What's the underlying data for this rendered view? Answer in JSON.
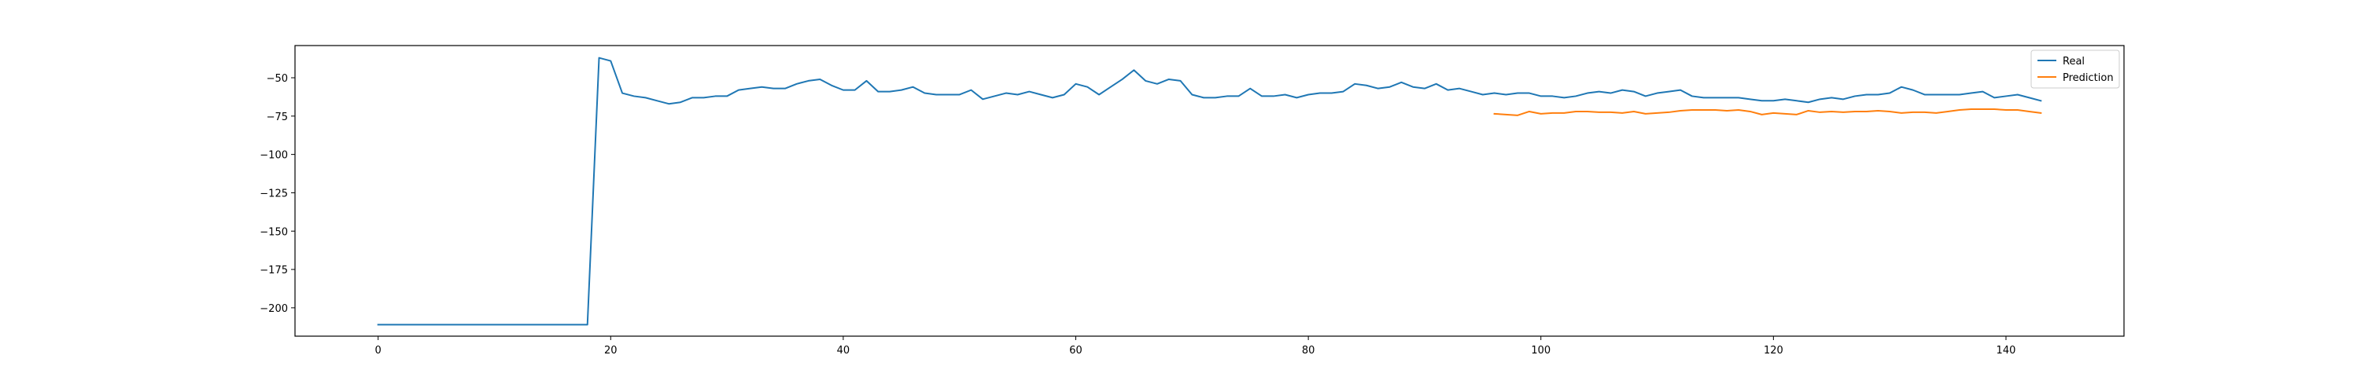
{
  "chart_data": {
    "type": "line",
    "title": "",
    "xlabel": "",
    "ylabel": "",
    "xlim": [
      -7.15,
      150.15
    ],
    "ylim": [
      -218.5,
      -29.0
    ],
    "xticks": [
      0,
      20,
      40,
      60,
      80,
      100,
      120,
      140
    ],
    "yticks": [
      -200,
      -175,
      -150,
      -125,
      -100,
      -75,
      -50
    ],
    "grid": false,
    "legend_position": "top-right",
    "series": [
      {
        "name": "Real",
        "color": "#1f77b4",
        "x": [
          0,
          1,
          2,
          3,
          4,
          5,
          6,
          7,
          8,
          9,
          10,
          11,
          12,
          13,
          14,
          15,
          16,
          17,
          18,
          19,
          20,
          21,
          22,
          23,
          24,
          25,
          26,
          27,
          28,
          29,
          30,
          31,
          32,
          33,
          34,
          35,
          36,
          37,
          38,
          39,
          40,
          41,
          42,
          43,
          44,
          45,
          46,
          47,
          48,
          49,
          50,
          51,
          52,
          53,
          54,
          55,
          56,
          57,
          58,
          59,
          60,
          61,
          62,
          63,
          64,
          65,
          66,
          67,
          68,
          69,
          70,
          71,
          72,
          73,
          74,
          75,
          76,
          77,
          78,
          79,
          80,
          81,
          82,
          83,
          84,
          85,
          86,
          87,
          88,
          89,
          90,
          91,
          92,
          93,
          94,
          95,
          96,
          97,
          98,
          99,
          100,
          101,
          102,
          103,
          104,
          105,
          106,
          107,
          108,
          109,
          110,
          111,
          112,
          113,
          114,
          115,
          116,
          117,
          118,
          119,
          120,
          121,
          122,
          123,
          124,
          125,
          126,
          127,
          128,
          129,
          130,
          131,
          132,
          133,
          134,
          135,
          136,
          137,
          138,
          139,
          140,
          141,
          142,
          143
        ],
        "values": [
          -211,
          -211,
          -211,
          -211,
          -211,
          -211,
          -211,
          -211,
          -211,
          -211,
          -211,
          -211,
          -211,
          -211,
          -211,
          -211,
          -211,
          -211,
          -211,
          -37,
          -39,
          -60,
          -62,
          -63,
          -65,
          -67,
          -66,
          -63,
          -63,
          -62,
          -62,
          -58,
          -57,
          -56,
          -57,
          -57,
          -54,
          -52,
          -51,
          -55,
          -58,
          -58,
          -52,
          -59,
          -59,
          -58,
          -56,
          -60,
          -61,
          -61,
          -61,
          -58,
          -64,
          -62,
          -60,
          -61,
          -59,
          -61,
          -63,
          -61,
          -54,
          -56,
          -61,
          -56,
          -51,
          -45,
          -52,
          -54,
          -51,
          -52,
          -61,
          -63,
          -63,
          -62,
          -62,
          -57,
          -62,
          -62,
          -61,
          -63,
          -61,
          -60,
          -60,
          -59,
          -54,
          -55,
          -57,
          -56,
          -53,
          -56,
          -57,
          -54,
          -58,
          -57,
          -59,
          -61,
          -60,
          -61,
          -60,
          -60,
          -62,
          -62,
          -63,
          -62,
          -60,
          -59,
          -60,
          -58,
          -59,
          -62,
          -60,
          -59,
          -58,
          -62,
          -63,
          -63,
          -63,
          -63,
          -64,
          -65,
          -65,
          -64,
          -65,
          -66,
          -64,
          -63,
          -64,
          -62,
          -61,
          -61,
          -60,
          -56,
          -58,
          -61,
          -61,
          -61,
          -61,
          -60,
          -59,
          -63,
          -62,
          -61,
          -63,
          -65
        ]
      },
      {
        "name": "Prediction",
        "color": "#ff7f0e",
        "x": [
          96,
          97,
          98,
          99,
          100,
          101,
          102,
          103,
          104,
          105,
          106,
          107,
          108,
          109,
          110,
          111,
          112,
          113,
          114,
          115,
          116,
          117,
          118,
          119,
          120,
          121,
          122,
          123,
          124,
          125,
          126,
          127,
          128,
          129,
          130,
          131,
          132,
          133,
          134,
          135,
          136,
          137,
          138,
          139,
          140,
          141,
          142,
          143
        ],
        "values": [
          -73.5,
          -74,
          -74.5,
          -72,
          -73.5,
          -73,
          -73,
          -72,
          -72,
          -72.5,
          -72.5,
          -73,
          -72,
          -73.5,
          -73,
          -72.5,
          -71.5,
          -71,
          -71,
          -71,
          -71.5,
          -71,
          -72,
          -74,
          -73,
          -73.5,
          -74,
          -71.5,
          -72.5,
          -72,
          -72.5,
          -72,
          -72,
          -71.5,
          -72,
          -73,
          -72.5,
          -72.5,
          -73,
          -72,
          -71,
          -70.5,
          -70.5,
          -70.5,
          -71,
          -71,
          -72,
          -73
        ]
      }
    ]
  }
}
